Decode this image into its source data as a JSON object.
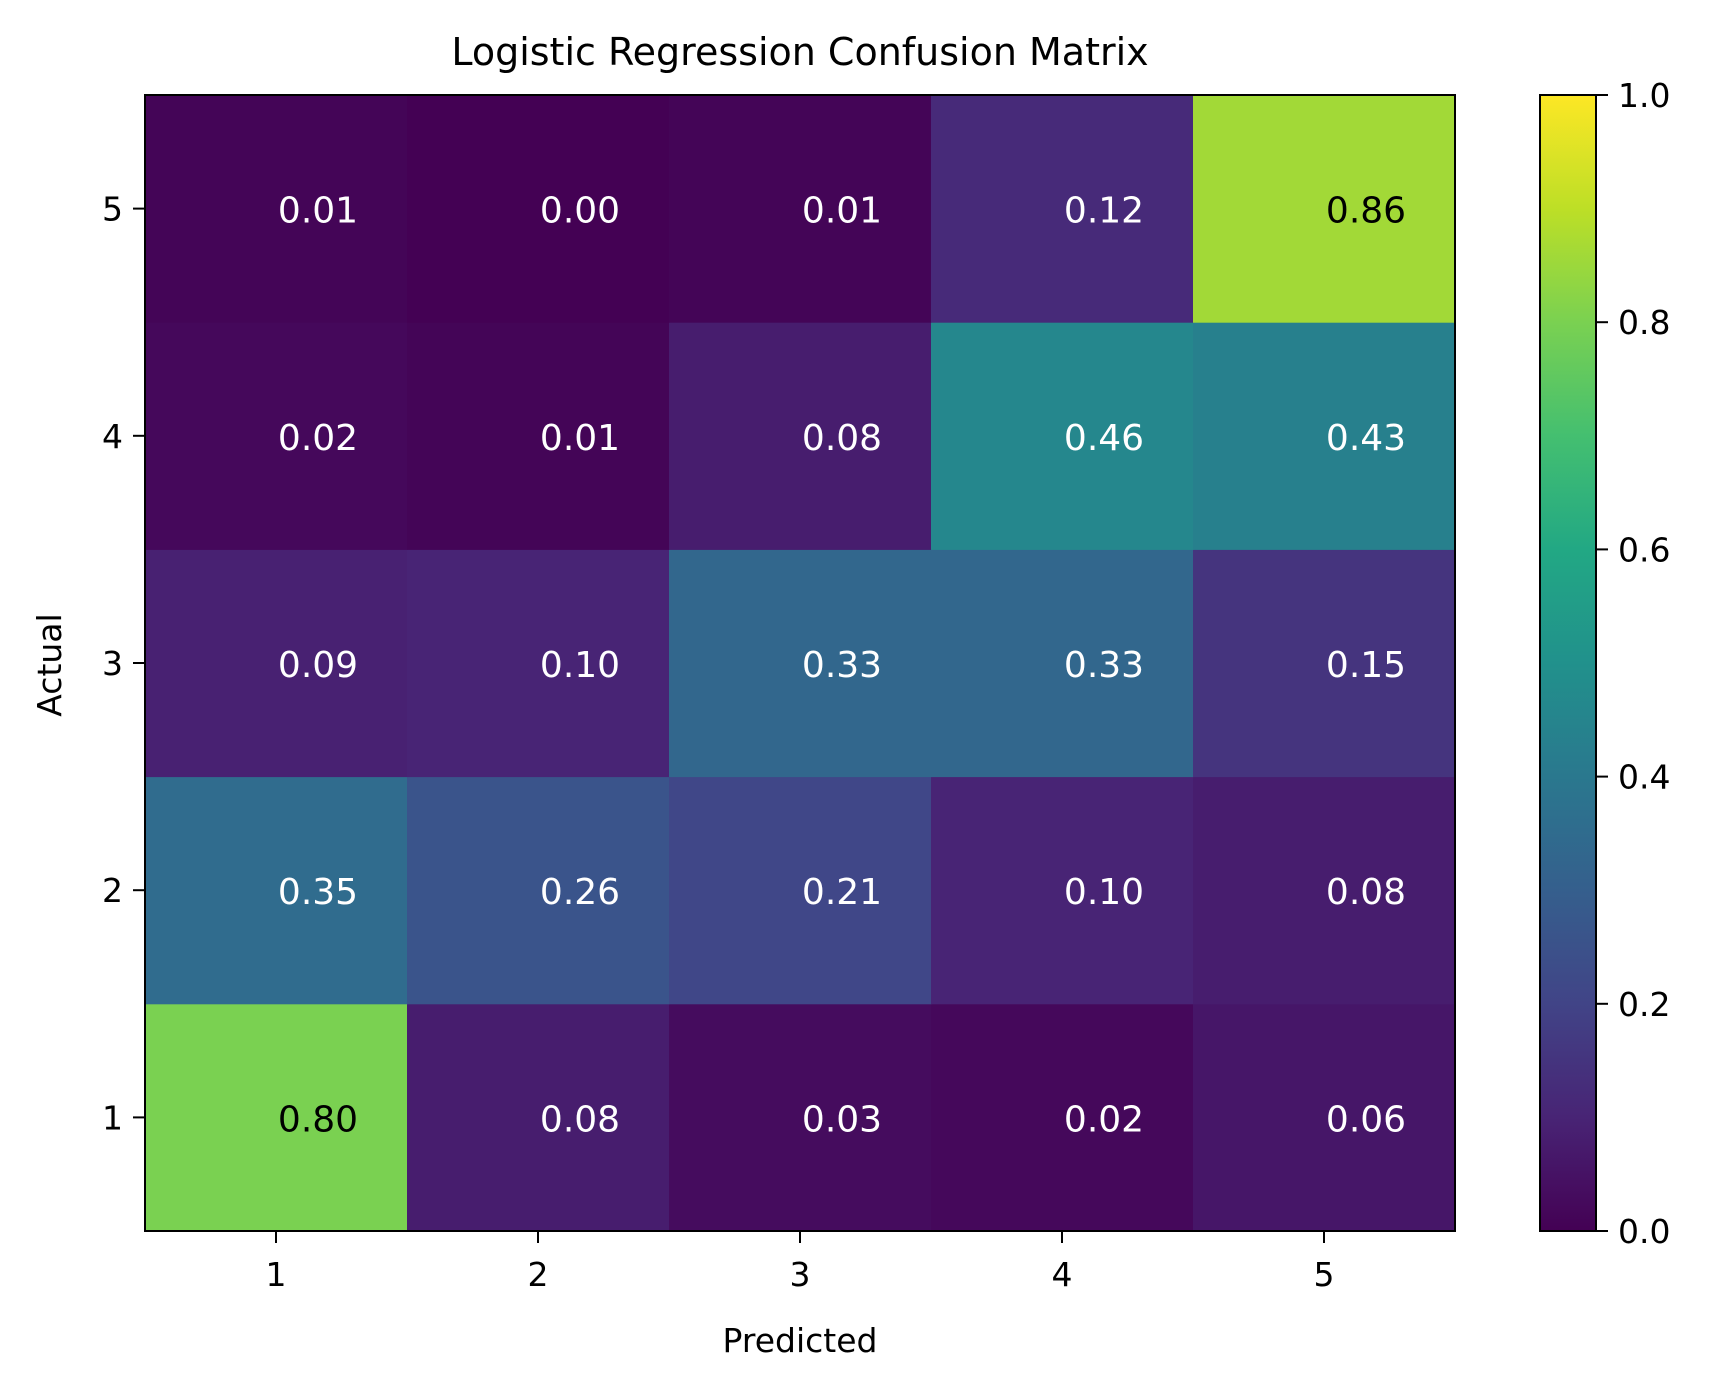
{
  "chart_data": {
    "type": "heatmap",
    "title": "Logistic Regression Confusion Matrix",
    "xlabel": "Predicted",
    "ylabel": "Actual",
    "x_categories": [
      "1",
      "2",
      "3",
      "4",
      "5"
    ],
    "y_categories": [
      "1",
      "2",
      "3",
      "4",
      "5"
    ],
    "values": [
      [
        0.8,
        0.08,
        0.03,
        0.02,
        0.06
      ],
      [
        0.35,
        0.26,
        0.21,
        0.1,
        0.08
      ],
      [
        0.09,
        0.1,
        0.33,
        0.33,
        0.15
      ],
      [
        0.02,
        0.01,
        0.08,
        0.46,
        0.43
      ],
      [
        0.01,
        0.0,
        0.01,
        0.12,
        0.86
      ]
    ],
    "value_format_decimals": 2,
    "colormap": "viridis",
    "colorbar": {
      "range": [
        0.0,
        1.0
      ],
      "ticks": [
        "0.0",
        "0.2",
        "0.4",
        "0.6",
        "0.8",
        "1.0"
      ]
    },
    "y_order": "ascending-upward",
    "grid": false
  }
}
